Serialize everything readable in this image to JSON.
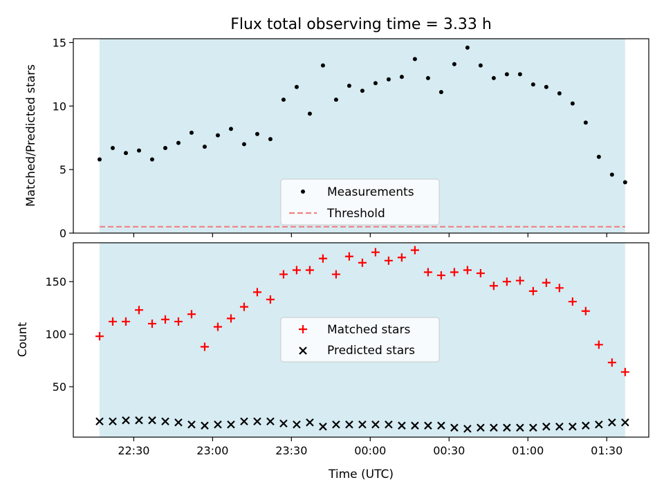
{
  "chart_data": {
    "type": "scatter",
    "title": "Flux total observing time = 3.33 h",
    "xlabel": "Time (UTC)",
    "x_tick_labels": [
      "22:30",
      "23:00",
      "23:30",
      "00:00",
      "00:30",
      "01:00",
      "01:30"
    ],
    "x_ticks_minutes": [
      0,
      30,
      60,
      90,
      120,
      150,
      180
    ],
    "x_minutes_since_2230": [
      -13,
      -8,
      -3,
      2,
      7,
      12,
      17,
      22,
      27,
      32,
      37,
      42,
      47,
      52,
      57,
      62,
      67,
      72,
      77,
      82,
      87,
      92,
      97,
      102,
      107,
      112,
      117,
      122,
      127,
      132,
      137,
      142,
      147,
      152,
      157,
      162,
      167,
      172,
      177,
      182,
      187
    ],
    "xlim": [
      -23,
      196
    ],
    "shaded_span": [
      -13,
      187
    ],
    "panels": [
      {
        "ylabel": "Matched/Predicted stars",
        "ylim": [
          0,
          15.3
        ],
        "yticks": [
          0,
          5,
          10,
          15
        ],
        "series": [
          {
            "name": "Measurements",
            "marker": "dot",
            "color": "#000000",
            "values": [
              5.8,
              6.7,
              6.3,
              6.5,
              5.8,
              6.7,
              7.1,
              7.9,
              6.8,
              7.7,
              8.2,
              7.0,
              7.8,
              7.4,
              10.5,
              11.5,
              9.4,
              13.2,
              10.5,
              11.6,
              11.2,
              11.8,
              12.1,
              12.3,
              13.7,
              12.2,
              11.1,
              13.3,
              14.6,
              13.2,
              12.2,
              12.5,
              12.5,
              11.7,
              11.5,
              11.0,
              10.2,
              8.7,
              6.0,
              4.6,
              4.0
            ]
          },
          {
            "name": "Threshold",
            "marker": "dashed-line",
            "color": "#f08080",
            "value": 0.5
          }
        ]
      },
      {
        "ylabel": "Count",
        "ylim": [
          2,
          187
        ],
        "yticks": [
          50,
          100,
          150
        ],
        "series": [
          {
            "name": "Matched stars",
            "marker": "plus",
            "color": "#ff0000",
            "values": [
              98,
              112,
              112,
              123,
              110,
              114,
              112,
              119,
              88,
              107,
              115,
              126,
              140,
              133,
              157,
              161,
              161,
              172,
              157,
              174,
              168,
              178,
              170,
              173,
              180,
              159,
              156,
              159,
              161,
              158,
              146,
              150,
              151,
              141,
              149,
              144,
              131,
              122,
              90,
              73,
              64
            ]
          },
          {
            "name": "Predicted stars",
            "marker": "x",
            "color": "#000000",
            "values": [
              17,
              17,
              18,
              18,
              18,
              17,
              16,
              14,
              13,
              14,
              14,
              17,
              17,
              17,
              15,
              14,
              16,
              12,
              14,
              14,
              14,
              14,
              14,
              13,
              13,
              13,
              13,
              11,
              10,
              11,
              11,
              11,
              11,
              11,
              12,
              12,
              12,
              13,
              14,
              16,
              16
            ]
          }
        ]
      }
    ],
    "span_color": "#add8e6",
    "grid": false,
    "legend_placement": "lower-center"
  }
}
